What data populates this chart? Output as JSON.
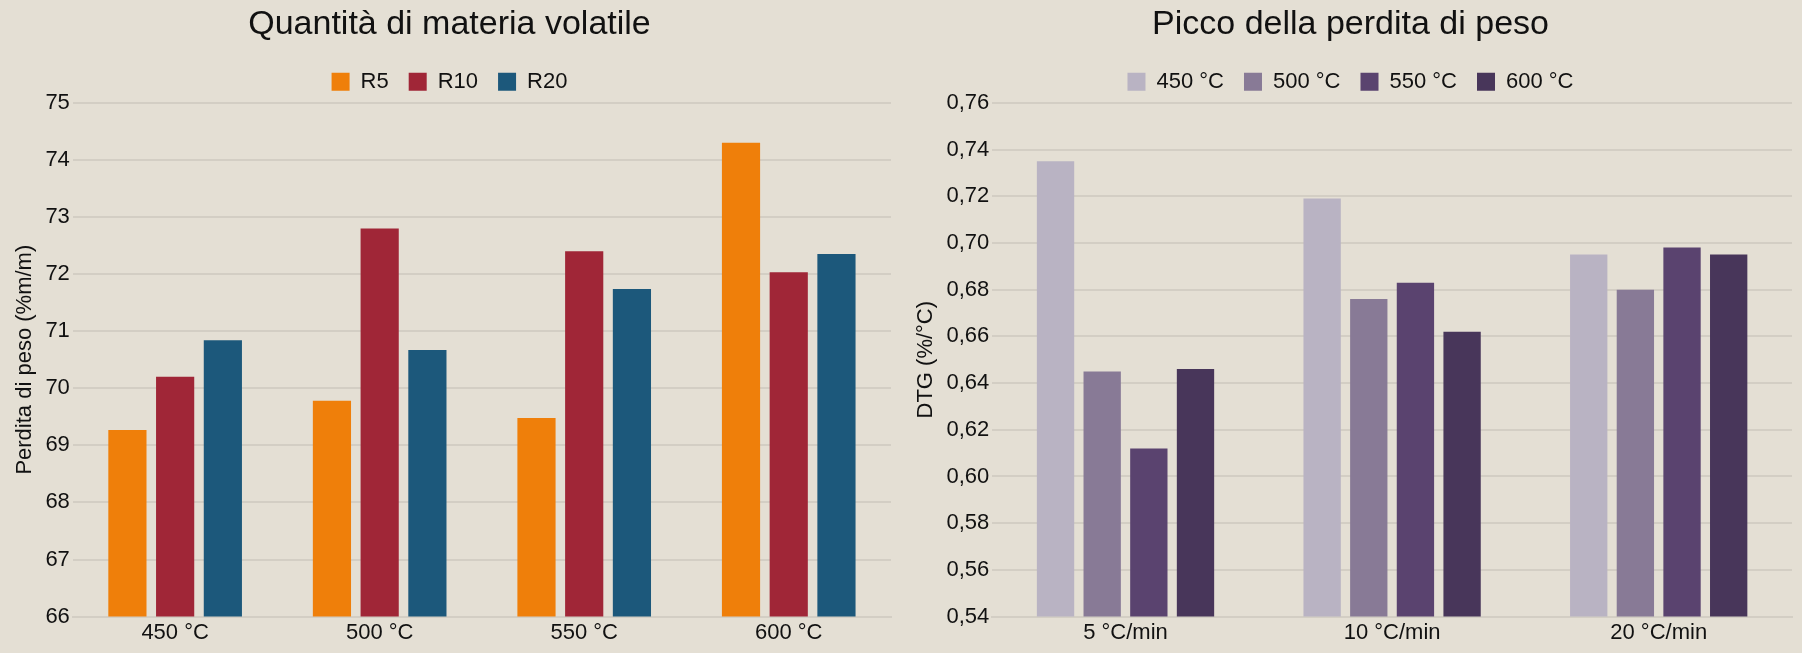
{
  "chart_data": [
    {
      "type": "bar",
      "title": "Quantità di materia volatile",
      "ylabel": "Perdita di peso (%m/m)",
      "categories": [
        "450 °C",
        "500 °C",
        "550 °C",
        "600 °C"
      ],
      "series": [
        {
          "name": "R5",
          "color": "#ef7f0a",
          "values": [
            69.27,
            69.78,
            69.48,
            74.3
          ]
        },
        {
          "name": "R10",
          "color": "#a02637",
          "values": [
            70.2,
            72.8,
            72.4,
            72.03
          ]
        },
        {
          "name": "R20",
          "color": "#1c587b",
          "values": [
            70.84,
            70.67,
            71.74,
            72.35
          ]
        }
      ],
      "ylim": [
        66,
        75
      ],
      "yticks": [
        66,
        67,
        68,
        69,
        70,
        71,
        72,
        73,
        74,
        75
      ],
      "grid": "y",
      "legend": "top"
    },
    {
      "type": "bar",
      "title": "Picco della perdita di peso",
      "ylabel": "DTG (%/°C)",
      "categories": [
        "5 °C/min",
        "10 °C/min",
        "20 °C/min"
      ],
      "series": [
        {
          "name": "450 °C",
          "color": "#b9b3c3",
          "values": [
            0.735,
            0.719,
            0.695
          ]
        },
        {
          "name": "500 °C",
          "color": "#887a96",
          "values": [
            0.645,
            0.676,
            0.68
          ]
        },
        {
          "name": "550 °C",
          "color": "#5a436f",
          "values": [
            0.612,
            0.683,
            0.698
          ]
        },
        {
          "name": "600 °C",
          "color": "#48365a",
          "values": [
            0.646,
            0.662,
            0.695
          ]
        }
      ],
      "ylim": [
        0.54,
        0.76
      ],
      "yticks": [
        {
          "value": 0.54,
          "label": "0,54"
        },
        {
          "value": 0.56,
          "label": "0,56"
        },
        {
          "value": 0.58,
          "label": "0,58"
        },
        {
          "value": 0.6,
          "label": "0,60"
        },
        {
          "value": 0.62,
          "label": "0,62"
        },
        {
          "value": 0.64,
          "label": "0,64"
        },
        {
          "value": 0.66,
          "label": "0,66"
        },
        {
          "value": 0.68,
          "label": "0,68"
        },
        {
          "value": 0.7,
          "label": "0,70"
        },
        {
          "value": 0.72,
          "label": "0,72"
        },
        {
          "value": 0.74,
          "label": "0,74"
        },
        {
          "value": 0.76,
          "label": "0,76"
        }
      ],
      "grid": "y",
      "legend": "top"
    }
  ]
}
